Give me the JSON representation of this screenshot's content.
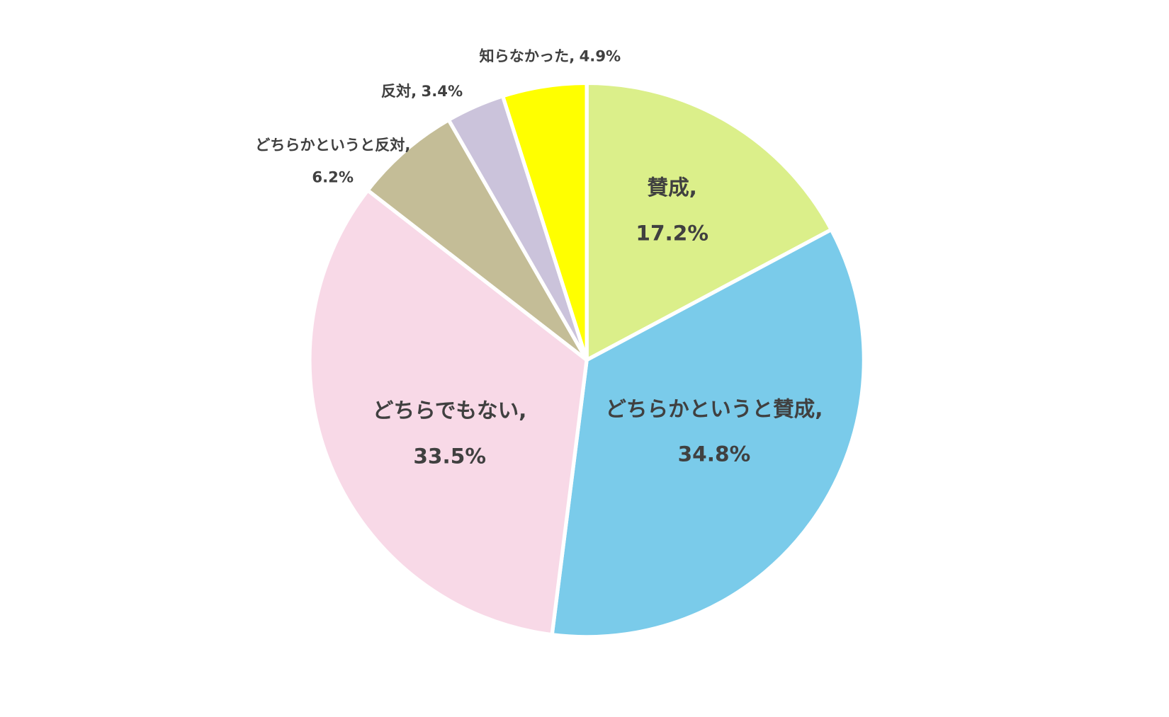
{
  "chart_data": {
    "type": "pie",
    "categories": [
      "賛成,",
      "どちらかというと賛成,",
      "どちらでもない,",
      "どちらかというと反対,",
      "反対,",
      "知らなかった,"
    ],
    "values": [
      17.2,
      34.8,
      33.5,
      6.2,
      3.4,
      4.9
    ],
    "value_labels": [
      "17.2%",
      "34.8%",
      "33.5%",
      "6.2%",
      "3.4%",
      "4.9%"
    ],
    "colors": [
      "#dbef8a",
      "#7acbea",
      "#f8d9e7",
      "#c4bd97",
      "#cbc3db",
      "#ffff00"
    ]
  }
}
